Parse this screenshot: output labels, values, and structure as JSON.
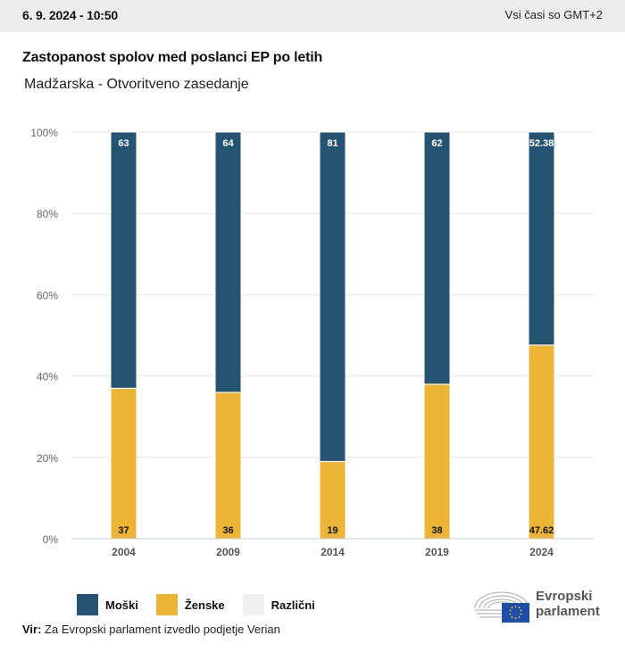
{
  "header": {
    "date": "6. 9. 2024 - 10:50",
    "timezone": "Vsi časi so GMT+2"
  },
  "title": "Zastopanost spolov med poslanci EP po letih",
  "subtitle": "Madžarska - Otvoritveno zasedanje",
  "colors": {
    "men": "#255372",
    "women": "#ecb535",
    "diverse": "#f0f0f0",
    "grid": "#e4e4e4",
    "baseline": "#c8cfdb"
  },
  "chart_data": {
    "type": "bar",
    "stacked": true,
    "title": "Zastopanost spolov med poslanci EP po letih",
    "subtitle": "Madžarska - Otvoritveno zasedanje",
    "xlabel": "",
    "ylabel": "",
    "categories": [
      "2004",
      "2009",
      "2014",
      "2019",
      "2024"
    ],
    "series": [
      {
        "name": "Ženske",
        "key": "women",
        "values": [
          37,
          36,
          19,
          38,
          47.62
        ],
        "labels": [
          "37",
          "36",
          "19",
          "38",
          "47.62"
        ]
      },
      {
        "name": "Moški",
        "key": "men",
        "values": [
          63,
          64,
          81,
          62,
          52.38
        ],
        "labels": [
          "63",
          "64",
          "81",
          "62",
          "52.38"
        ]
      },
      {
        "name": "Različni",
        "key": "diverse",
        "values": [
          0,
          0,
          0,
          0,
          0
        ],
        "labels": [
          "",
          "",
          "",
          "",
          ""
        ]
      }
    ],
    "ylim": [
      0,
      100
    ],
    "yticks": [
      0,
      20,
      40,
      60,
      80,
      100
    ],
    "ytick_labels": [
      "0%",
      "20%",
      "40%",
      "60%",
      "80%",
      "100%"
    ],
    "grid": true,
    "legend_position": "bottom-left"
  },
  "legend": [
    {
      "label": "Moški",
      "key": "men"
    },
    {
      "label": "Ženske",
      "key": "women"
    },
    {
      "label": "Različni",
      "key": "diverse"
    }
  ],
  "source": {
    "label": "Vir:",
    "text": " Za Evropski parlament izvedlo podjetje Verian"
  },
  "logo": {
    "line1": "Evropski",
    "line2": "parlament"
  }
}
